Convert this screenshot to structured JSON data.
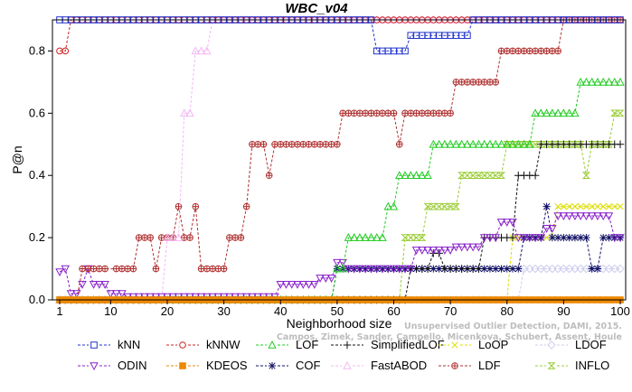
{
  "chart_data": {
    "type": "line",
    "title": "WBC_v04",
    "xlabel": "Neighborhood size",
    "ylabel": "P@n",
    "xlim": [
      1,
      100
    ],
    "ylim": [
      0,
      0.9
    ],
    "xticks": [
      1,
      10,
      20,
      30,
      40,
      50,
      60,
      70,
      80,
      90,
      100
    ],
    "yticks": [
      0.0,
      0.2,
      0.4,
      0.6,
      0.8
    ],
    "ytick_labels": [
      "0.0",
      "0.2",
      "0.4",
      "0.6",
      "0.8"
    ],
    "legend_position": "bottom",
    "credit": [
      "Unsupervised Outlier Detection, DAMI, 2015.",
      "Campos, Zimek, Sander, Campello, Micenkova, Schubert, Assent, Houle"
    ],
    "series": [
      {
        "name": "kNN",
        "color": "#2233cc",
        "marker": "square",
        "segments": [
          [
            1,
            100,
            0.9
          ]
        ],
        "override": [
          [
            57,
            62,
            0.8
          ],
          [
            63,
            73,
            0.85
          ]
        ]
      },
      {
        "name": "kNNW",
        "color": "#cc2222",
        "marker": "circle",
        "segments": [
          [
            1,
            2,
            0.8
          ],
          [
            3,
            100,
            0.9
          ]
        ]
      },
      {
        "name": "LOF",
        "color": "#22cc22",
        "marker": "triangle-up",
        "segments": [
          [
            1,
            49,
            0.0
          ],
          [
            50,
            51,
            0.1
          ],
          [
            52,
            58,
            0.2
          ],
          [
            59,
            60,
            0.3
          ],
          [
            61,
            66,
            0.4
          ],
          [
            67,
            84,
            0.5
          ],
          [
            85,
            92,
            0.6
          ],
          [
            93,
            100,
            0.7
          ]
        ]
      },
      {
        "name": "SimplifiedLOF",
        "color": "#111111",
        "marker": "plus",
        "segments": [
          [
            1,
            52,
            0.0
          ],
          [
            53,
            62,
            0.0
          ],
          [
            63,
            66,
            0.1
          ],
          [
            67,
            68,
            0.15
          ],
          [
            69,
            75,
            0.1
          ],
          [
            76,
            81,
            0.2
          ],
          [
            82,
            85,
            0.4
          ],
          [
            86,
            100,
            0.5
          ]
        ]
      },
      {
        "name": "LoOP",
        "color": "#dddd00",
        "marker": "x",
        "segments": [
          [
            1,
            80,
            0.0
          ],
          [
            81,
            88,
            0.2
          ],
          [
            89,
            100,
            0.3
          ]
        ]
      },
      {
        "name": "LDOF",
        "color": "#ccccee",
        "marker": "diamond",
        "segments": [
          [
            1,
            82,
            0.0
          ],
          [
            83,
            100,
            0.1
          ]
        ]
      },
      {
        "name": "ODIN",
        "color": "#8822cc",
        "marker": "triangle-down",
        "segments": [
          [
            1,
            1,
            0.09
          ],
          [
            2,
            2,
            0.1
          ],
          [
            3,
            4,
            0.02
          ],
          [
            5,
            5,
            0.05
          ],
          [
            6,
            6,
            0.1
          ],
          [
            7,
            9,
            0.05
          ],
          [
            10,
            12,
            0.02
          ],
          [
            13,
            19,
            0.01
          ],
          [
            20,
            39,
            0.01
          ],
          [
            40,
            46,
            0.05
          ],
          [
            47,
            49,
            0.07
          ],
          [
            50,
            51,
            0.12
          ],
          [
            52,
            63,
            0.1
          ],
          [
            64,
            70,
            0.16
          ],
          [
            71,
            75,
            0.17
          ],
          [
            76,
            78,
            0.2
          ],
          [
            79,
            81,
            0.25
          ],
          [
            82,
            86,
            0.2
          ],
          [
            87,
            88,
            0.23
          ],
          [
            89,
            98,
            0.27
          ],
          [
            99,
            100,
            0.2
          ]
        ]
      },
      {
        "name": "KDEOS",
        "color": "#ee8800",
        "marker": "square-filled",
        "segments": [
          [
            1,
            100,
            0.0
          ]
        ]
      },
      {
        "name": "COF",
        "color": "#111166",
        "marker": "asterisk",
        "segments": [
          [
            1,
            49,
            0.0
          ],
          [
            50,
            63,
            0.1
          ],
          [
            64,
            82,
            0.1
          ],
          [
            83,
            86,
            0.2
          ],
          [
            87,
            87,
            0.3
          ],
          [
            88,
            94,
            0.2
          ],
          [
            95,
            96,
            0.1
          ],
          [
            97,
            100,
            0.2
          ]
        ]
      },
      {
        "name": "FastABOD",
        "color": "#f4b8f4",
        "marker": "triangle-outline",
        "segments": [
          [
            1,
            19,
            0.0
          ],
          [
            20,
            22,
            0.2
          ],
          [
            23,
            24,
            0.6
          ],
          [
            25,
            27,
            0.8
          ],
          [
            28,
            100,
            0.9
          ]
        ]
      },
      {
        "name": "LDF",
        "color": "#b03030",
        "marker": "circle-plus",
        "segments": [
          [
            1,
            1,
            0.0
          ],
          [
            2,
            4,
            0.0
          ],
          [
            5,
            5,
            0.1
          ],
          [
            6,
            8,
            0.1
          ],
          [
            9,
            9,
            0.1
          ],
          [
            11,
            14,
            0.1
          ],
          [
            15,
            17,
            0.2
          ],
          [
            18,
            18,
            0.1
          ],
          [
            19,
            21,
            0.2
          ],
          [
            22,
            22,
            0.3
          ],
          [
            23,
            24,
            0.2
          ],
          [
            25,
            25,
            0.3
          ],
          [
            26,
            30,
            0.1
          ],
          [
            31,
            33,
            0.2
          ],
          [
            34,
            34,
            0.3
          ],
          [
            35,
            37,
            0.5
          ],
          [
            38,
            38,
            0.4
          ],
          [
            39,
            50,
            0.5
          ],
          [
            51,
            60,
            0.6
          ],
          [
            61,
            61,
            0.5
          ],
          [
            62,
            70,
            0.6
          ],
          [
            71,
            78,
            0.7
          ],
          [
            79,
            89,
            0.8
          ],
          [
            90,
            100,
            0.9
          ]
        ]
      },
      {
        "name": "INFLO",
        "color": "#99cc33",
        "marker": "hourglass",
        "segments": [
          [
            1,
            61,
            0.0
          ],
          [
            62,
            65,
            0.2
          ],
          [
            66,
            71,
            0.3
          ],
          [
            72,
            79,
            0.4
          ],
          [
            80,
            93,
            0.5
          ],
          [
            94,
            94,
            0.4
          ],
          [
            95,
            98,
            0.5
          ],
          [
            99,
            100,
            0.6
          ]
        ]
      }
    ]
  }
}
